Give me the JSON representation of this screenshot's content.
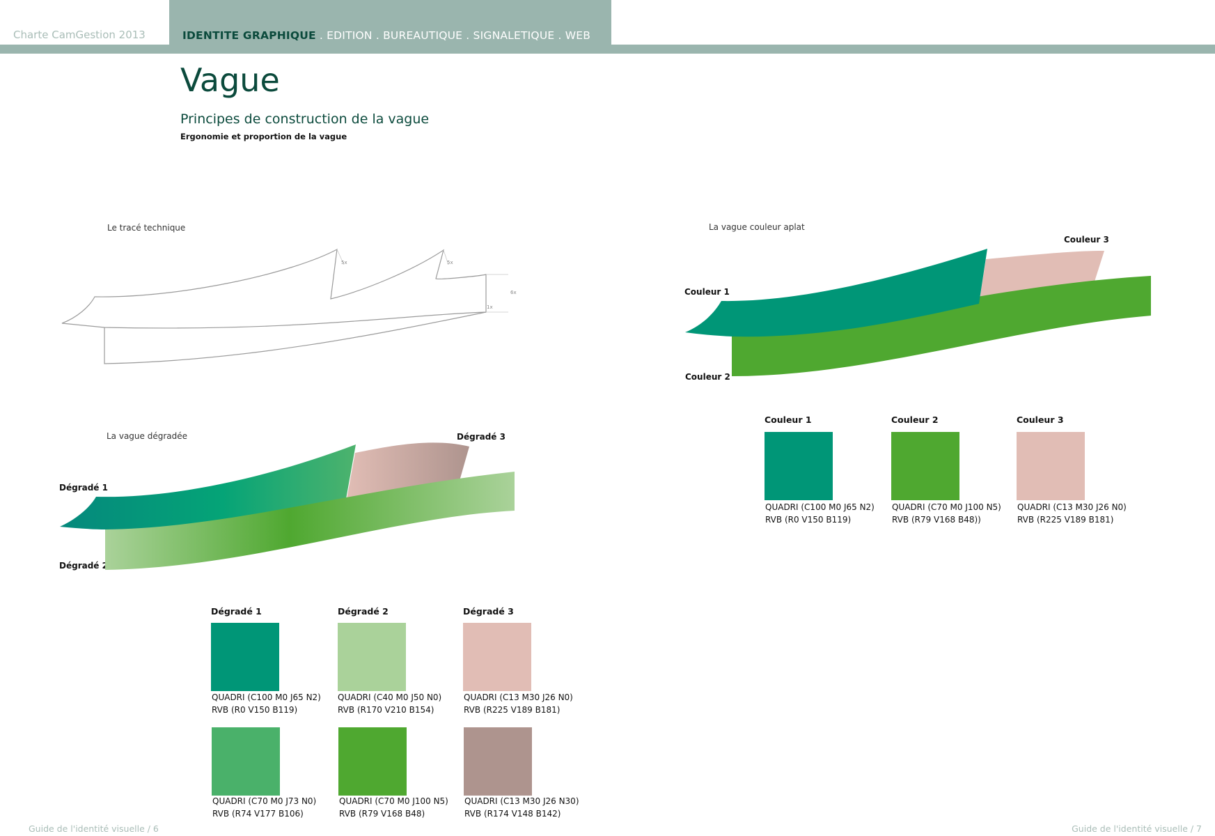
{
  "header": {
    "doc_title": "Charte CamGestion 2013",
    "nav_active": "IDENTITE GRAPHIQUE",
    "nav_rest": " . EDITION . BUREAUTIQUE . SIGNALETIQUE . WEB"
  },
  "page": {
    "title": "Vague",
    "subtitle": "Principes de construction de la vague",
    "subsubtitle": "Ergonomie et proportion de la vague"
  },
  "technical": {
    "label": "Le tracé technique",
    "dims": [
      "5x",
      "5x",
      "6x",
      "1x"
    ]
  },
  "gradient_wave": {
    "label": "La vague dégradée",
    "callouts": [
      "Dégradé 1",
      "Dégradé 2",
      "Dégradé 3"
    ]
  },
  "flat_wave": {
    "label": "La vague couleur aplat",
    "callouts": [
      "Couleur 1",
      "Couleur 2",
      "Couleur 3"
    ]
  },
  "gradient_swatches": {
    "titles": [
      "Dégradé 1",
      "Dégradé 2",
      "Dégradé 3"
    ],
    "row1": [
      {
        "color": "#009677",
        "quadri": "QUADRI (C100 M0 J65 N2)",
        "rvb": "RVB (R0 V150 B119)"
      },
      {
        "color": "#aad29a",
        "quadri": "QUADRI (C40 M0 J50 N0)",
        "rvb": "RVB (R170 V210 B154)"
      },
      {
        "color": "#e1bdb5",
        "quadri": "QUADRI (C13 M30 J26 N0)",
        "rvb": "RVB (R225 V189 B181)"
      }
    ],
    "row2": [
      {
        "color": "#4ab16a",
        "quadri": "QUADRI (C70 M0 J73 N0)",
        "rvb": "RVB (R74 V177 B106)"
      },
      {
        "color": "#4fa830",
        "quadri": "QUADRI (C70 M0 J100 N5)",
        "rvb": "RVB (R79 V168 B48)"
      },
      {
        "color": "#ae948e",
        "quadri": "QUADRI (C13 M30 J26 N30)",
        "rvb": "RVB (R174 V148 B142)"
      }
    ]
  },
  "flat_swatches": {
    "titles": [
      "Couleur 1",
      "Couleur 2",
      "Couleur 3"
    ],
    "items": [
      {
        "color": "#009677",
        "quadri": "QUADRI (C100 M0 J65 N2)",
        "rvb": "RVB (R0 V150 B119)"
      },
      {
        "color": "#4fa830",
        "quadri": "QUADRI (C70 M0 J100 N5)",
        "rvb": "RVB (R79 V168 B48))"
      },
      {
        "color": "#e1bdb5",
        "quadri": "QUADRI (C13 M30 J26 N0)",
        "rvb": "RVB (R225 V189 B181)"
      }
    ]
  },
  "footer": {
    "left": "Guide de l'identité visuelle / 6",
    "right": "Guide de l'identité visuelle / 7"
  }
}
